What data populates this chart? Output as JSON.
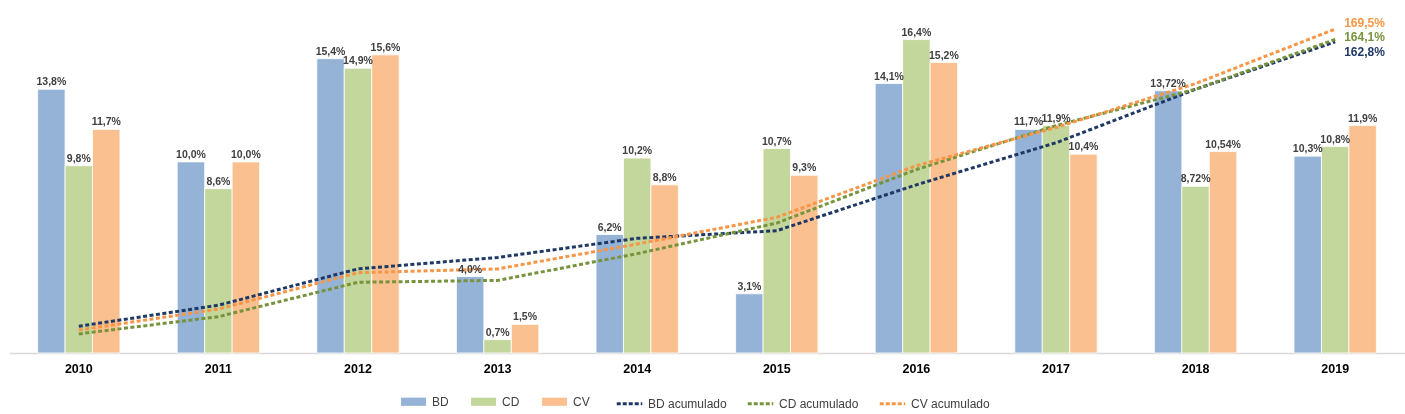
{
  "chart_data": {
    "type": "bar",
    "categories": [
      "2010",
      "2011",
      "2012",
      "2013",
      "2014",
      "2015",
      "2016",
      "2017",
      "2018",
      "2019"
    ],
    "series": [
      {
        "name": "BD",
        "color": "#95b3d7",
        "values": [
          13.8,
          10.0,
          15.4,
          4.0,
          6.2,
          3.1,
          14.1,
          11.7,
          13.72,
          10.3
        ],
        "value_labels": [
          "13,8%",
          "10,0%",
          "15,4%",
          "4,0%",
          "6,2%",
          "3,1%",
          "14,1%",
          "11,7%",
          "13,72%",
          "10,3%"
        ]
      },
      {
        "name": "CD",
        "color": "#c3d69b",
        "values": [
          9.8,
          8.6,
          14.9,
          0.7,
          10.2,
          10.7,
          16.4,
          11.9,
          8.72,
          10.8
        ],
        "value_labels": [
          "9,8%",
          "8,6%",
          "14,9%",
          "0,7%",
          "10,2%",
          "10,7%",
          "16,4%",
          "11,9%",
          "8,72%",
          "10,8%"
        ]
      },
      {
        "name": "CV",
        "color": "#fac090",
        "values": [
          11.7,
          10.0,
          15.6,
          1.5,
          8.8,
          9.3,
          15.2,
          10.4,
          10.54,
          11.9
        ],
        "value_labels": [
          "11,7%",
          "10,0%",
          "15,6%",
          "1,5%",
          "8,8%",
          "9,3%",
          "15,2%",
          "10,4%",
          "10,54%",
          "11,9%"
        ]
      },
      {
        "name": "BD acumulado",
        "type": "line",
        "axis": "y2",
        "color": "#1f3864",
        "values": [
          14,
          25,
          44,
          50,
          60,
          64,
          88,
          110,
          138,
          162.8
        ],
        "value_labels": [
          null,
          null,
          null,
          null,
          null,
          null,
          null,
          null,
          null,
          "162,8%"
        ]
      },
      {
        "name": "CD acumulado",
        "type": "line",
        "axis": "y2",
        "color": "#77933c",
        "values": [
          10,
          19,
          37,
          38,
          52,
          68,
          96,
          119,
          138,
          164.1
        ],
        "value_labels": [
          null,
          null,
          null,
          null,
          null,
          null,
          null,
          null,
          null,
          "164,1%"
        ]
      },
      {
        "name": "CV acumulado",
        "type": "line",
        "axis": "y2",
        "color": "#f79646",
        "values": [
          12,
          23,
          42,
          44,
          57,
          71,
          98,
          118,
          141,
          169.5
        ],
        "value_labels": [
          null,
          null,
          null,
          null,
          null,
          null,
          null,
          null,
          null,
          "169,5%"
        ]
      }
    ],
    "tick_labels": "x",
    "legend": "bottom",
    "line_style": "dashed"
  }
}
